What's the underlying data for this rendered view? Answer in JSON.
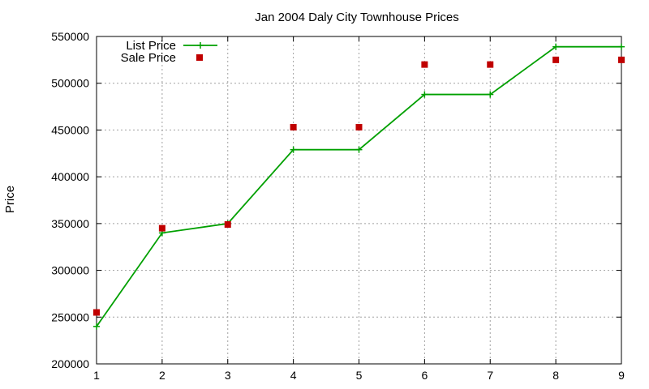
{
  "chart_data": {
    "type": "line",
    "title": "Jan 2004 Daly City Townhouse Prices",
    "xlabel": "",
    "ylabel": "Price",
    "x": [
      1,
      2,
      3,
      4,
      5,
      6,
      7,
      8,
      9
    ],
    "xlim": [
      1,
      9
    ],
    "ylim": [
      200000,
      550000
    ],
    "xticks": [
      "1",
      "2",
      "3",
      "4",
      "5",
      "6",
      "7",
      "8",
      "9"
    ],
    "yticks": [
      "200000",
      "250000",
      "300000",
      "350000",
      "400000",
      "450000",
      "500000",
      "550000"
    ],
    "grid": true,
    "legend_position": "top-left",
    "series": [
      {
        "name": "List Price",
        "style": "linespoints",
        "marker": "plus",
        "color": "#00a000",
        "values": [
          240000,
          340000,
          350000,
          429000,
          429000,
          488000,
          488000,
          539000,
          539000
        ]
      },
      {
        "name": "Sale Price",
        "style": "points",
        "marker": "square",
        "color": "#c00000",
        "values": [
          255000,
          345000,
          349000,
          453000,
          453000,
          520000,
          520000,
          525000,
          525000
        ]
      }
    ]
  }
}
